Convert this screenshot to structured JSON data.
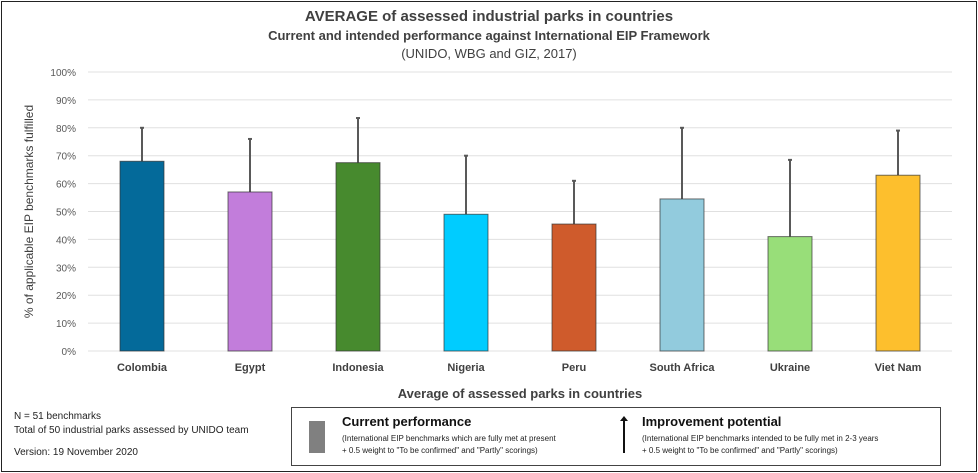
{
  "chart_data": {
    "type": "bar",
    "title": "AVERAGE of assessed industrial parks in countries",
    "subtitle": "Current and intended performance against International EIP Framework",
    "source": "(UNIDO, WBG and GIZ, 2017)",
    "xlabel": "Average of assessed parks in countries",
    "ylabel": "% of applicable EIP benchmarks fulfilled",
    "ylim": [
      0,
      100
    ],
    "yticks": [
      "0%",
      "10%",
      "20%",
      "30%",
      "40%",
      "50%",
      "60%",
      "70%",
      "80%",
      "90%",
      "100%"
    ],
    "grid": true,
    "categories": [
      "Colombia",
      "Egypt",
      "Indonesia",
      "Nigeria",
      "Peru",
      "South Africa",
      "Ukraine",
      "Viet Nam"
    ],
    "series": [
      {
        "name": "Current performance",
        "values": [
          68,
          57,
          67.5,
          49,
          45.5,
          54.5,
          41,
          63
        ]
      },
      {
        "name": "Improvement potential (error bar top)",
        "values": [
          80,
          76,
          83.5,
          70,
          61,
          80,
          68.5,
          79
        ]
      }
    ],
    "colors": [
      "#046A9A",
      "#C27DDB",
      "#478A2E",
      "#00CCFF",
      "#CF5B2C",
      "#92CBDD",
      "#98DE79",
      "#FDBF2D"
    ]
  },
  "notes": {
    "n": "N = 51 benchmarks",
    "total": "Total of 50 industrial parks assessed by UNIDO team",
    "version": "Version: 19 November 2020"
  },
  "legend": {
    "current_title": "Current performance",
    "current_line1": "(International EIP benchmarks which are fully met at present",
    "current_line2": "+ 0.5 weight to \"To be confirmed\" and \"Partly\" scorings)",
    "improve_title": "Improvement potential",
    "improve_line1": "(International EIP benchmarks intended to be fully met in 2-3 years",
    "improve_line2": "+ 0.5 weight to \"To be confirmed\" and \"Partly\" scorings)"
  }
}
